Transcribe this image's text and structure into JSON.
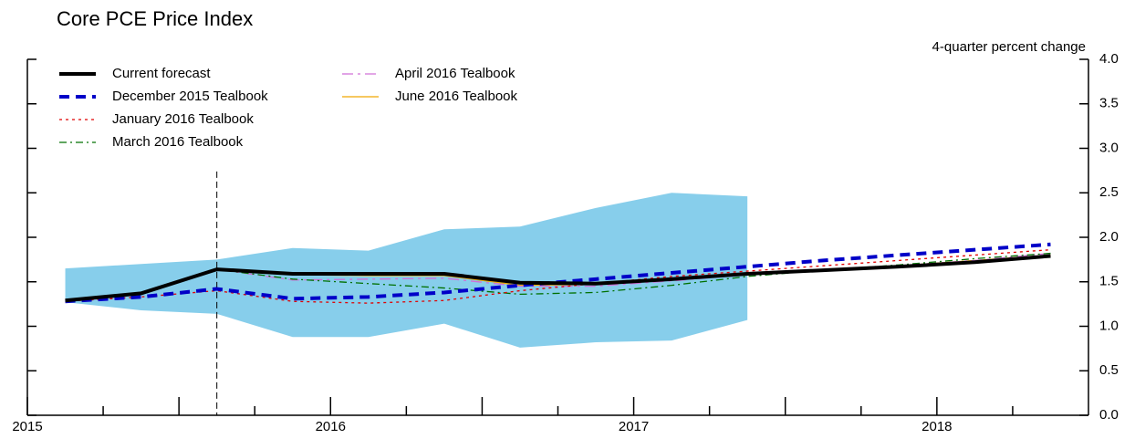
{
  "chart_data": {
    "type": "line",
    "title": "Core PCE Price Index",
    "y_axis_label": "4-quarter percent change",
    "xlim": [
      2015,
      2018.5
    ],
    "xticks": [
      2015,
      2016,
      2017,
      2018
    ],
    "minor_xticks": [
      2015.25,
      2015.5,
      2015.75,
      2016.25,
      2016.5,
      2016.75,
      2017.25,
      2017.5,
      2017.75,
      2018.25
    ],
    "ylim": [
      0,
      4
    ],
    "yticks": [
      {
        "value": 0,
        "label": "0.0"
      },
      {
        "value": 0.5,
        "label": "0.5"
      },
      {
        "value": 1,
        "label": "1.0"
      },
      {
        "value": 1.5,
        "label": "1.5"
      },
      {
        "value": 2,
        "label": "2.0"
      },
      {
        "value": 2.5,
        "label": "2.5"
      },
      {
        "value": 3,
        "label": "3.0"
      },
      {
        "value": 3.5,
        "label": "3.5"
      },
      {
        "value": 4,
        "label": "4.0"
      }
    ],
    "vline_x": 2015.625,
    "vline_top": 2.74,
    "band": {
      "color": "#87ceeb",
      "x": [
        2015.125,
        2015.375,
        2015.625,
        2015.875,
        2016.125,
        2016.375,
        2016.625,
        2016.875,
        2017.125,
        2017.375
      ],
      "upper": [
        1.65,
        1.7,
        1.75,
        1.88,
        1.85,
        2.09,
        2.12,
        2.33,
        2.5,
        2.46
      ],
      "lower": [
        1.27,
        1.18,
        1.14,
        0.88,
        0.88,
        1.03,
        0.76,
        0.82,
        0.84,
        1.07
      ]
    },
    "x": [
      2015.125,
      2015.375,
      2015.625,
      2015.875,
      2016.125,
      2016.375,
      2016.625,
      2016.875,
      2017.125,
      2017.375,
      2017.625,
      2017.875,
      2018.125,
      2018.375
    ],
    "series": [
      {
        "name": "June 2016 Tealbook",
        "color": "#f0a800",
        "width": 1.3,
        "dash": "none",
        "values": [
          1.29,
          1.37,
          1.64,
          1.58,
          1.57,
          1.57,
          1.46,
          1.47,
          1.52,
          1.59,
          1.63,
          1.68,
          1.74,
          1.8
        ]
      },
      {
        "name": "April 2016 Tealbook",
        "color": "#d070d8",
        "width": 1.3,
        "dash": "12 5 3 5",
        "values": [
          1.28,
          1.37,
          1.64,
          1.52,
          1.53,
          1.54,
          1.45,
          1.45,
          1.51,
          1.58,
          1.63,
          1.68,
          1.74,
          1.82
        ]
      },
      {
        "name": "March 2016 Tealbook",
        "color": "#007000",
        "width": 1.3,
        "dash": "8 4 2 4",
        "values": [
          1.28,
          1.36,
          1.64,
          1.53,
          1.48,
          1.43,
          1.36,
          1.38,
          1.46,
          1.56,
          1.63,
          1.69,
          1.76,
          1.82
        ]
      },
      {
        "name": "January 2016 Tealbook",
        "color": "#e00000",
        "width": 1.3,
        "dash": "3 4",
        "values": [
          1.28,
          1.33,
          1.4,
          1.28,
          1.26,
          1.29,
          1.4,
          1.48,
          1.56,
          1.62,
          1.68,
          1.74,
          1.8,
          1.86
        ]
      },
      {
        "name": "December 2015 Tealbook",
        "color": "#0000c8",
        "width": 4,
        "dash": "11 7",
        "values": [
          1.28,
          1.33,
          1.42,
          1.31,
          1.33,
          1.38,
          1.46,
          1.53,
          1.6,
          1.67,
          1.74,
          1.8,
          1.86,
          1.92
        ]
      },
      {
        "name": "Current forecast",
        "color": "#000000",
        "width": 4,
        "dash": "none",
        "values": [
          1.29,
          1.37,
          1.64,
          1.59,
          1.59,
          1.59,
          1.49,
          1.48,
          1.53,
          1.59,
          1.63,
          1.67,
          1.72,
          1.79
        ]
      }
    ]
  }
}
